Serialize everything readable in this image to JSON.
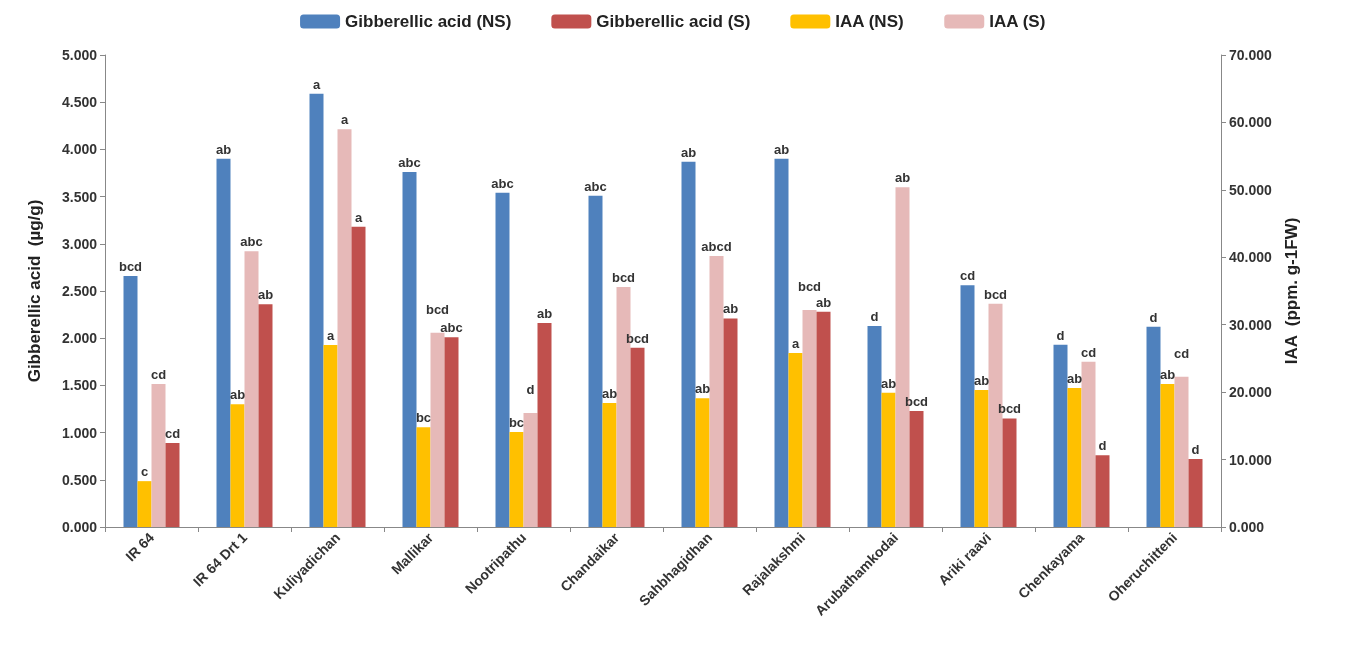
{
  "chart_data": {
    "type": "bar",
    "ylabel": "Gibberellic acid  (µg/g)",
    "y2label": "IAA  (ppm. g-1FW)",
    "categories": [
      "IR 64",
      "IR 64 Drt 1",
      "Kuliyadichan",
      "Mallikar",
      "Nootripathu",
      "Chandaikar",
      "Sahbhagidhan",
      "Rajalakshmi",
      "Arubathamkodai",
      "Ariki raavi",
      "Chenkayama",
      "Oheruchitteni"
    ],
    "series": [
      {
        "name": "Gibberellic acid (NS)",
        "color": "#4f81bd",
        "values": [
          2.66,
          3.9,
          4.59,
          3.76,
          3.54,
          3.51,
          3.87,
          3.9,
          2.13,
          2.56,
          1.93,
          2.12
        ],
        "value_labels": [
          "bcd",
          "ab",
          "a",
          "abc",
          "abc",
          "abc",
          "ab",
          "ab",
          "d",
          "cd",
          "d",
          "d"
        ]
      },
      {
        "name": "IAA (NS)",
        "color": "#ffc000",
        "axis": "y2",
        "values": [
          6.8,
          18.2,
          27.0,
          14.8,
          14.1,
          18.4,
          19.1,
          25.8,
          19.9,
          20.3,
          20.6,
          21.2
        ],
        "value_labels": [
          "c",
          "ab",
          "a",
          "bc",
          "bc",
          "ab",
          "ab",
          "a",
          "ab",
          "ab",
          "ab",
          "ab"
        ]
      },
      {
        "name": "IAA (S)",
        "color": "#e6b9b8",
        "axis": "y2",
        "values": [
          21.2,
          40.9,
          59.0,
          28.8,
          16.9,
          35.6,
          40.2,
          32.2,
          50.4,
          33.1,
          24.5,
          22.3
        ],
        "value_labels": [
          "cd",
          "abc",
          "a",
          "bcd",
          "d",
          "bcd",
          "abcd",
          "bcd",
          "ab",
          "bcd",
          "cd",
          "cd"
        ]
      },
      {
        "name": "Gibberellic acid (S)",
        "color": "#c0504d",
        "values": [
          0.89,
          2.36,
          3.18,
          2.01,
          2.16,
          1.9,
          2.21,
          2.28,
          1.23,
          1.15,
          0.76,
          0.72
        ],
        "value_labels": [
          "cd",
          "ab",
          "a",
          "abc",
          "ab",
          "bcd",
          "ab",
          "ab",
          "bcd",
          "bcd",
          "d",
          "d"
        ]
      }
    ],
    "ylim": [
      0,
      5
    ],
    "yticks": [
      {
        "value": 0,
        "label": "0.000"
      },
      {
        "value": 0.5,
        "label": "0.500"
      },
      {
        "value": 1,
        "label": "1.000"
      },
      {
        "value": 1.5,
        "label": "1.500"
      },
      {
        "value": 2,
        "label": "2.000"
      },
      {
        "value": 2.5,
        "label": "2.500"
      },
      {
        "value": 3,
        "label": "3.000"
      },
      {
        "value": 3.5,
        "label": "3.500"
      },
      {
        "value": 4,
        "label": "4.000"
      },
      {
        "value": 4.5,
        "label": "4.500"
      },
      {
        "value": 5,
        "label": "5.000"
      }
    ],
    "y2lim": [
      0,
      70
    ],
    "y2ticks": [
      {
        "value": 0,
        "label": "0.000"
      },
      {
        "value": 10,
        "label": "10.000"
      },
      {
        "value": 20,
        "label": "20.000"
      },
      {
        "value": 30,
        "label": "30.000"
      },
      {
        "value": 40,
        "label": "40.000"
      },
      {
        "value": 50,
        "label": "50.000"
      },
      {
        "value": 60,
        "label": "60.000"
      },
      {
        "value": 70,
        "label": "70.000"
      }
    ],
    "grid": false,
    "legend": "top"
  }
}
